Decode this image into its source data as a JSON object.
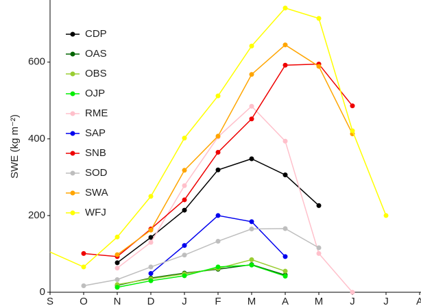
{
  "chart_data": {
    "type": "line",
    "ylabel": "SWE (kg m⁻²)",
    "categories": [
      "S",
      "O",
      "N",
      "D",
      "J",
      "F",
      "M",
      "A",
      "M",
      "J",
      "J",
      "A"
    ],
    "ylim": [
      0,
      762
    ],
    "yticks": [
      0,
      200,
      400,
      600
    ],
    "legend": "top-left",
    "series": [
      {
        "name": "CDP",
        "color": "#000000",
        "values": [
          null,
          null,
          77,
          143,
          214,
          319,
          348,
          306,
          226,
          null,
          null,
          null
        ]
      },
      {
        "name": "OAS",
        "color": "#006400",
        "values": [
          null,
          null,
          18,
          37,
          50,
          60,
          72,
          45,
          null,
          null,
          null,
          null
        ]
      },
      {
        "name": "OBS",
        "color": "#9acd32",
        "values": [
          null,
          null,
          20,
          35,
          48,
          62,
          85,
          55,
          null,
          null,
          null,
          null
        ]
      },
      {
        "name": "OJP",
        "color": "#00ee00",
        "values": [
          null,
          null,
          13,
          30,
          43,
          66,
          71,
          42,
          null,
          null,
          null,
          null
        ]
      },
      {
        "name": "RME",
        "color": "#ffc0cb",
        "values": [
          null,
          null,
          63,
          130,
          278,
          405,
          485,
          394,
          101,
          0,
          null,
          null
        ]
      },
      {
        "name": "SAP",
        "color": "#0000ee",
        "values": [
          null,
          null,
          null,
          49,
          122,
          200,
          184,
          93,
          null,
          null,
          null,
          null
        ]
      },
      {
        "name": "SNB",
        "color": "#ee0000",
        "values": [
          null,
          101,
          93,
          165,
          241,
          365,
          452,
          592,
          595,
          486,
          null,
          null
        ]
      },
      {
        "name": "SOD",
        "color": "#bebebe",
        "values": [
          null,
          17,
          33,
          66,
          97,
          133,
          165,
          166,
          116,
          null,
          null,
          null
        ]
      },
      {
        "name": "SWA",
        "color": "#ffa500",
        "values": [
          null,
          null,
          98,
          162,
          318,
          407,
          568,
          645,
          589,
          413,
          null,
          null
        ]
      },
      {
        "name": "WFJ",
        "color": "#ffff00",
        "values": [
          105,
          66,
          144,
          250,
          402,
          512,
          642,
          741,
          714,
          421,
          200,
          null
        ]
      }
    ]
  }
}
